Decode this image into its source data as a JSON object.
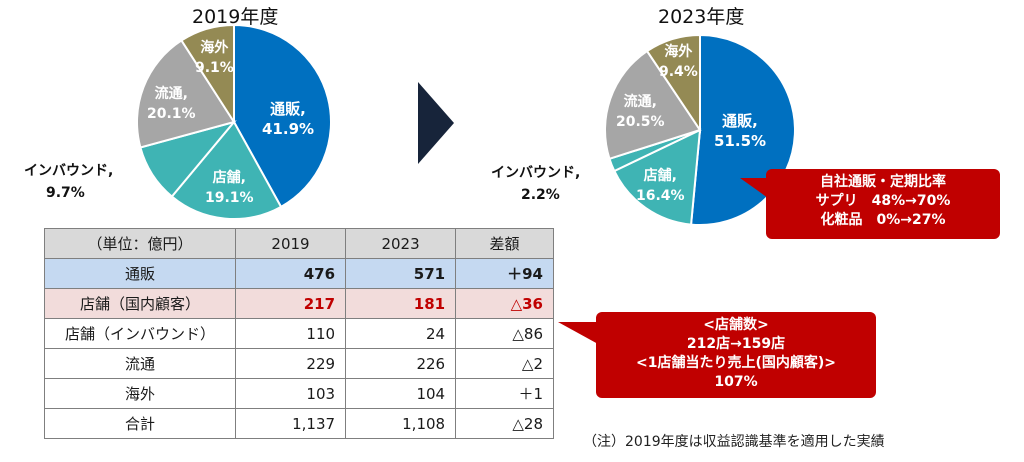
{
  "chart_data": [
    {
      "type": "pie",
      "title": "2019年度",
      "slices": [
        {
          "label": "通販",
          "value": 41.9,
          "value_text": "41.9%",
          "color": "#0070c0"
        },
        {
          "label": "店舗",
          "value": 19.1,
          "value_text": "19.1%",
          "color": "#3fb4b4"
        },
        {
          "label": "インバウンド",
          "value": 9.7,
          "value_text": "9.7%",
          "color": "#3fb4b4"
        },
        {
          "label": "流通",
          "value": 20.1,
          "value_text": "20.1%",
          "color": "#a6a6a6"
        },
        {
          "label": "海外",
          "value": 9.1,
          "value_text": "9.1%",
          "color": "#948a54"
        }
      ]
    },
    {
      "type": "pie",
      "title": "2023年度",
      "slices": [
        {
          "label": "通販",
          "value": 51.5,
          "value_text": "51.5%",
          "color": "#0070c0"
        },
        {
          "label": "店舗",
          "value": 16.4,
          "value_text": "16.4%",
          "color": "#3fb4b4"
        },
        {
          "label": "インバウンド",
          "value": 2.2,
          "value_text": "2.2%",
          "color": "#3fb4b4"
        },
        {
          "label": "流通",
          "value": 20.5,
          "value_text": "20.5%",
          "color": "#a6a6a6"
        },
        {
          "label": "海外",
          "value": 9.4,
          "value_text": "9.4%",
          "color": "#948a54"
        }
      ]
    },
    {
      "type": "table",
      "columns": [
        "（単位：億円）",
        "2019",
        "2023",
        "差額"
      ],
      "rows": [
        [
          "通販",
          "476",
          "571",
          "＋94"
        ],
        [
          "店舗（国内顧客）",
          "217",
          "181",
          "△36"
        ],
        [
          "店舗（インバウンド）",
          "110",
          "24",
          "△86"
        ],
        [
          "流通",
          "229",
          "226",
          "△2"
        ],
        [
          "海外",
          "103",
          "104",
          "＋1"
        ],
        [
          "合計",
          "1,137",
          "1,108",
          "△28"
        ]
      ]
    }
  ],
  "labels": {
    "pie1": {
      "tsuhan": [
        "通販,",
        "41.9%"
      ],
      "tenpo": [
        "店舗,",
        "19.1%"
      ],
      "ryutsu": [
        "流通,",
        "20.1%"
      ],
      "kaigai": [
        "海外",
        "9.1%"
      ],
      "inbound": [
        "インバウンド,",
        "9.7%"
      ]
    },
    "pie2": {
      "tsuhan": [
        "通販,",
        "51.5%"
      ],
      "tenpo": [
        "店舗,",
        "16.4%"
      ],
      "ryutsu": [
        "流通,",
        "20.5%"
      ],
      "kaigai": [
        "海外",
        "9.4%"
      ],
      "inbound": [
        "インバウンド,",
        "2.2%"
      ]
    }
  },
  "callouts": {
    "top": [
      "自社通販・定期比率",
      "サプリ　48%→70%",
      "化粧品　0%→27%"
    ],
    "mid": [
      "<店舗数>",
      "212店→159店",
      "<1店舗当たり売上(国内顧客)>",
      "107%"
    ]
  },
  "note": "（注）2019年度は収益認識基準を適用した実績",
  "colors": {
    "callout": "#c00000",
    "arrow": "#17243a"
  }
}
